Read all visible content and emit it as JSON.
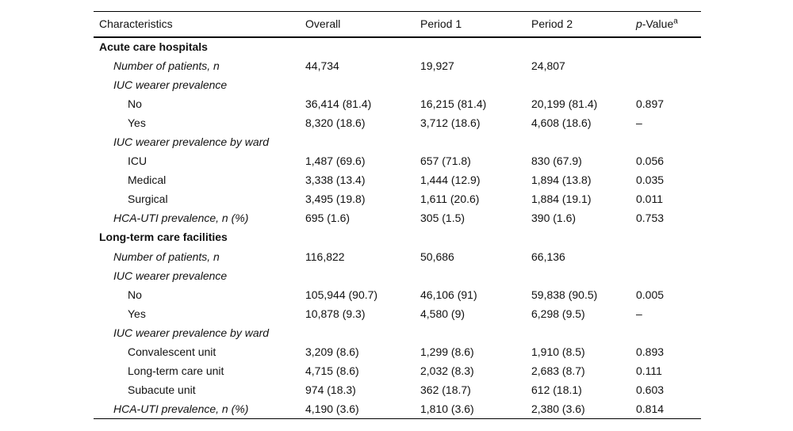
{
  "colors": {
    "text": "#121212",
    "rule": "#000000",
    "background": "#ffffff"
  },
  "table": {
    "header": {
      "characteristics": "Characteristics",
      "overall": "Overall",
      "period1": "Period 1",
      "period2": "Period 2",
      "pvalue_italic": "p",
      "pvalue_rest": "-Value",
      "pvalue_superscript": "a"
    },
    "rows": [
      {
        "style": "section",
        "indent": 0,
        "cells": [
          "Acute care hospitals",
          "",
          "",
          "",
          ""
        ]
      },
      {
        "style": "subhead",
        "indent": 1,
        "cells": [
          "Number of patients, n",
          "44,734",
          "19,927",
          "24,807",
          ""
        ]
      },
      {
        "style": "subhead",
        "indent": 1,
        "cells": [
          "IUC wearer prevalence",
          "",
          "",
          "",
          ""
        ]
      },
      {
        "style": "data",
        "indent": 2,
        "cells": [
          "No",
          "36,414 (81.4)",
          "16,215 (81.4)",
          "20,199 (81.4)",
          "0.897"
        ]
      },
      {
        "style": "data",
        "indent": 2,
        "cells": [
          "Yes",
          "8,320 (18.6)",
          "3,712 (18.6)",
          "4,608 (18.6)",
          "–"
        ]
      },
      {
        "style": "subhead",
        "indent": 1,
        "cells": [
          "IUC wearer prevalence by ward",
          "",
          "",
          "",
          ""
        ]
      },
      {
        "style": "data",
        "indent": 2,
        "cells": [
          "ICU",
          "1,487 (69.6)",
          "657 (71.8)",
          "830 (67.9)",
          "0.056"
        ]
      },
      {
        "style": "data",
        "indent": 2,
        "cells": [
          "Medical",
          "3,338 (13.4)",
          "1,444 (12.9)",
          "1,894 (13.8)",
          "0.035"
        ]
      },
      {
        "style": "data",
        "indent": 2,
        "cells": [
          "Surgical",
          "3,495 (19.8)",
          "1,611 (20.6)",
          "1,884 (19.1)",
          "0.011"
        ]
      },
      {
        "style": "subhead",
        "indent": 1,
        "cells": [
          "HCA-UTI prevalence, n (%)",
          "695 (1.6)",
          "305 (1.5)",
          "390 (1.6)",
          "0.753"
        ]
      },
      {
        "style": "section",
        "indent": 0,
        "cells": [
          "Long-term care facilities",
          "",
          "",
          "",
          ""
        ]
      },
      {
        "style": "subhead",
        "indent": 1,
        "cells": [
          "Number of patients, n",
          "116,822",
          "50,686",
          "66,136",
          ""
        ]
      },
      {
        "style": "subhead",
        "indent": 1,
        "cells": [
          "IUC wearer prevalence",
          "",
          "",
          "",
          ""
        ]
      },
      {
        "style": "data",
        "indent": 2,
        "cells": [
          "No",
          "105,944 (90.7)",
          "46,106 (91)",
          "59,838 (90.5)",
          "0.005"
        ]
      },
      {
        "style": "data",
        "indent": 2,
        "cells": [
          "Yes",
          "10,878 (9.3)",
          "4,580 (9)",
          "6,298 (9.5)",
          "–"
        ]
      },
      {
        "style": "subhead",
        "indent": 1,
        "cells": [
          "IUC wearer prevalence by ward",
          "",
          "",
          "",
          ""
        ]
      },
      {
        "style": "data",
        "indent": 2,
        "cells": [
          "Convalescent unit",
          "3,209 (8.6)",
          "1,299 (8.6)",
          "1,910 (8.5)",
          "0.893"
        ]
      },
      {
        "style": "data",
        "indent": 2,
        "cells": [
          "Long-term care unit",
          "4,715 (8.6)",
          "2,032 (8.3)",
          "2,683 (8.7)",
          "0.111"
        ]
      },
      {
        "style": "data",
        "indent": 2,
        "cells": [
          "Subacute unit",
          "974 (18.3)",
          "362 (18.7)",
          "612 (18.1)",
          "0.603"
        ]
      },
      {
        "style": "subhead",
        "indent": 1,
        "cells": [
          "HCA-UTI prevalence, n (%)",
          "4,190 (3.6)",
          "1,810 (3.6)",
          "2,380 (3.6)",
          "0.814"
        ]
      }
    ]
  }
}
